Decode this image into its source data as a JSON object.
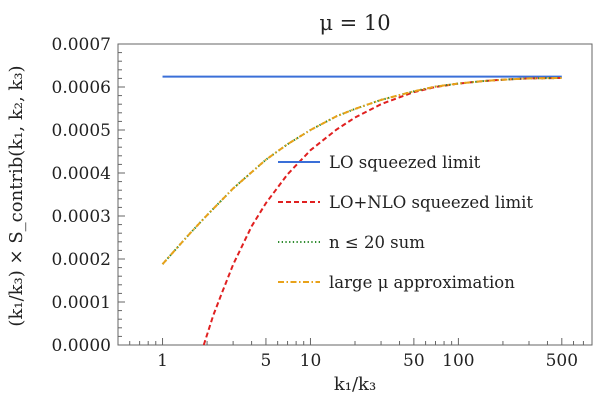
{
  "chart_data": {
    "type": "line",
    "title": "μ  =  10",
    "xlabel": "k₁/k₃",
    "ylabel": "(k₁/k₃) × S_contrib(k₁, k₂, k₃)",
    "xscale": "log",
    "xlim": [
      0.5,
      800
    ],
    "ylim": [
      0,
      0.0007
    ],
    "x_ticks": [
      {
        "value": 1,
        "label": "1"
      },
      {
        "value": 5,
        "label": "5"
      },
      {
        "value": 10,
        "label": "10"
      },
      {
        "value": 50,
        "label": "50"
      },
      {
        "value": 100,
        "label": "100"
      },
      {
        "value": 500,
        "label": "500"
      }
    ],
    "y_ticks": [
      {
        "value": 0,
        "label": "0.0000"
      },
      {
        "value": 0.0001,
        "label": "0.0001"
      },
      {
        "value": 0.0002,
        "label": "0.0002"
      },
      {
        "value": 0.0003,
        "label": "0.0003"
      },
      {
        "value": 0.0004,
        "label": "0.0004"
      },
      {
        "value": 0.0005,
        "label": "0.0005"
      },
      {
        "value": 0.0006,
        "label": "0.0006"
      },
      {
        "value": 0.0007,
        "label": "0.0007"
      }
    ],
    "legend_position": "right",
    "series": [
      {
        "name": "LO squeezed limit",
        "color": "#3a6fd8",
        "dash": "solid",
        "points": [
          [
            1,
            0.000624
          ],
          [
            500,
            0.000624
          ]
        ]
      },
      {
        "name": "LO+NLO squeezed limit",
        "color": "#e02020",
        "dash": "dashed",
        "points": [
          [
            1.9,
            0.0
          ],
          [
            2.2,
            6.85e-05
          ],
          [
            2.5,
            0.000118
          ],
          [
            3,
            0.000187
          ],
          [
            4,
            0.000276
          ],
          [
            5,
            0.00033
          ],
          [
            7,
            0.000397
          ],
          [
            10,
            0.000453
          ],
          [
            15,
            0.000501
          ],
          [
            20,
            0.000529
          ],
          [
            30,
            0.00056
          ],
          [
            40,
            0.000576
          ],
          [
            50,
            0.000588
          ],
          [
            70,
            0.0006
          ],
          [
            100,
            0.000608
          ],
          [
            150,
            0.000614
          ],
          [
            200,
            0.000617
          ],
          [
            300,
            0.00062
          ],
          [
            500,
            0.000621
          ]
        ]
      },
      {
        "name": "n ≤ 20 sum",
        "color": "#2e8b2e",
        "dash": "dotted",
        "points": [
          [
            1,
            0.000188
          ],
          [
            1.5,
            0.000256
          ],
          [
            2,
            0.000302
          ],
          [
            3,
            0.000364
          ],
          [
            5,
            0.000431
          ],
          [
            7,
            0.000467
          ],
          [
            10,
            0.0005
          ],
          [
            15,
            0.000532
          ],
          [
            20,
            0.000549
          ],
          [
            30,
            0.00057
          ],
          [
            50,
            0.00059
          ],
          [
            70,
            0.000601
          ],
          [
            100,
            0.000608
          ],
          [
            150,
            0.000614
          ],
          [
            200,
            0.000617
          ],
          [
            300,
            0.00062
          ],
          [
            500,
            0.000621
          ]
        ]
      },
      {
        "name": "large μ approximation",
        "color": "#e8a21a",
        "dash": "dashdot",
        "points": [
          [
            1,
            0.000188
          ],
          [
            1.5,
            0.000256
          ],
          [
            2,
            0.000302
          ],
          [
            3,
            0.000364
          ],
          [
            5,
            0.000431
          ],
          [
            7,
            0.000467
          ],
          [
            10,
            0.0005
          ],
          [
            15,
            0.000532
          ],
          [
            20,
            0.000549
          ],
          [
            30,
            0.00057
          ],
          [
            50,
            0.00059
          ],
          [
            70,
            0.000601
          ],
          [
            100,
            0.000608
          ],
          [
            150,
            0.000614
          ],
          [
            200,
            0.000617
          ],
          [
            300,
            0.00062
          ],
          [
            500,
            0.000621
          ]
        ]
      }
    ]
  }
}
